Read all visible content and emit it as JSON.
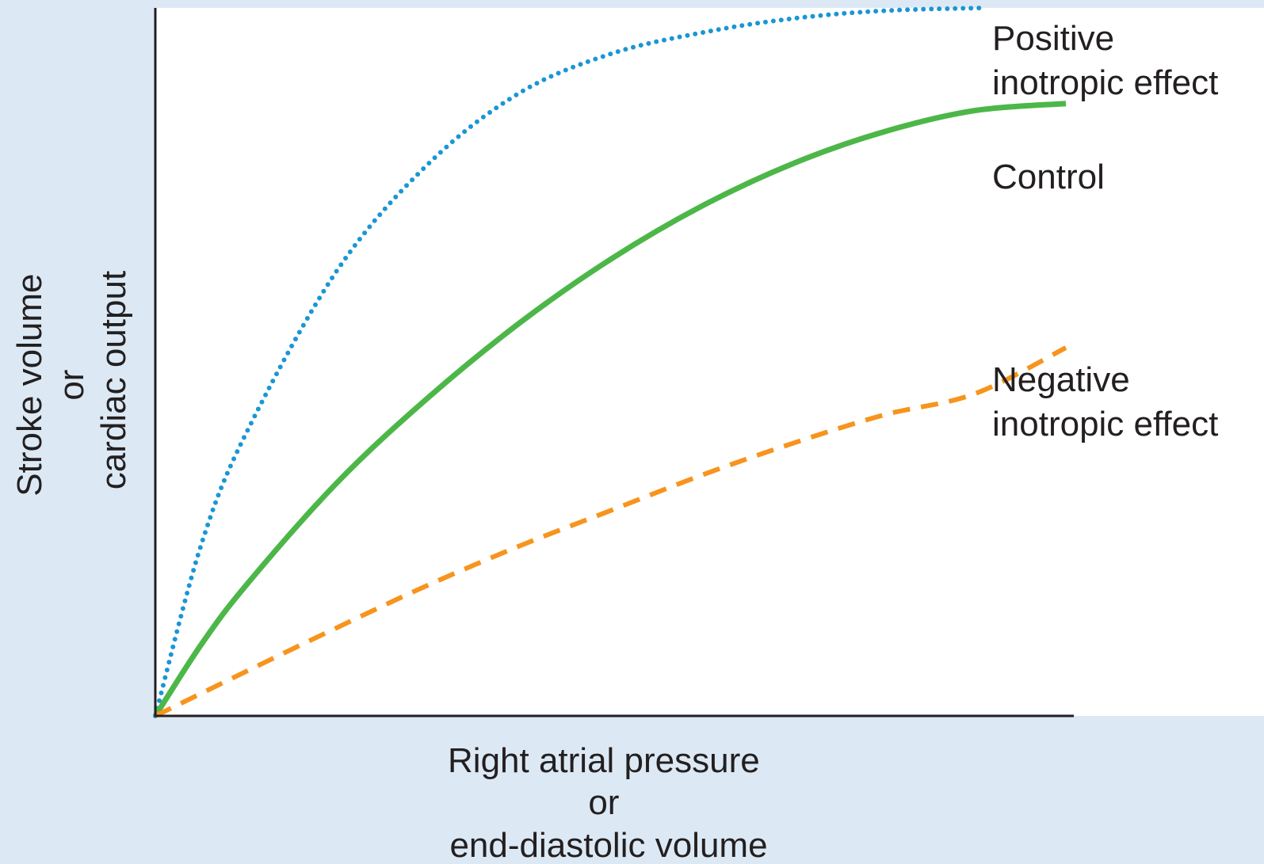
{
  "chart_data": {
    "type": "line",
    "title": "",
    "xlabel": [
      "Right atrial pressure",
      "or",
      "end-diastolic volume"
    ],
    "ylabel": [
      "Stroke volume",
      "or",
      "cardiac output"
    ],
    "xlim": [
      0,
      100
    ],
    "ylim": [
      0,
      100
    ],
    "grid": false,
    "ticks": "none",
    "series": [
      {
        "name": [
          "Positive",
          "inotropic effect"
        ],
        "color": "#1a96d4",
        "style": "dotted",
        "x": [
          0,
          5,
          10,
          20,
          30,
          40,
          50,
          60,
          70,
          80,
          91
        ],
        "y": [
          0,
          24,
          40,
          63,
          78,
          88,
          93.5,
          96.5,
          98.5,
          99.6,
          100
        ]
      },
      {
        "name": "Control",
        "color": "#4cb748",
        "style": "solid",
        "x": [
          0,
          5,
          10,
          20,
          30,
          40,
          50,
          60,
          70,
          80,
          90,
          100
        ],
        "y": [
          0,
          10,
          18.5,
          33,
          45,
          55.5,
          64.5,
          72,
          78,
          82.5,
          85.5,
          86.5
        ]
      },
      {
        "name": [
          "Negative",
          "inotropic effect"
        ],
        "color": "#f7941d",
        "style": "dashed",
        "x": [
          0,
          10,
          20,
          30,
          40,
          50,
          60,
          70,
          80,
          90,
          100
        ],
        "y": [
          0,
          6.3,
          12.5,
          18.5,
          24,
          29,
          34,
          38.5,
          42.5,
          45.5,
          52
        ]
      }
    ]
  }
}
